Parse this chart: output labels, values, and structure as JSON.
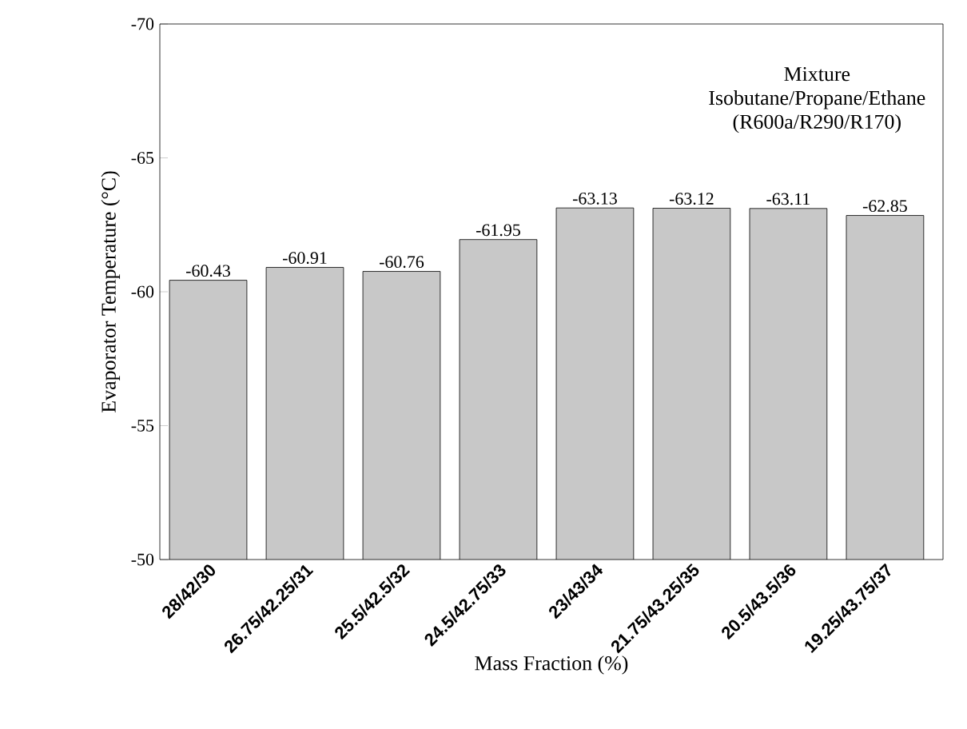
{
  "chart_data": {
    "type": "bar",
    "xlabel": "Mass Fraction (%)",
    "ylabel": "Evaporator Temperature (°C)",
    "categories": [
      "28/42/30",
      "26.75/42.25/31",
      "25.5/42.5/32",
      "24.5/42.75/33",
      "23/43/34",
      "21.75/43.25/35",
      "20.5/43.5/36",
      "19.25/43.75/37"
    ],
    "values": [
      -60.43,
      -60.91,
      -60.76,
      -61.95,
      -63.13,
      -63.12,
      -63.11,
      -62.85
    ],
    "color": "#c8c8c8",
    "ylim": [
      -50,
      -70
    ],
    "yticks": [
      -50,
      -55,
      -60,
      -65,
      -70
    ],
    "data_labels": true,
    "annotations": [
      "Mixture",
      "Isobutane/Propane/Ethane",
      "(R600a/R290/R170)"
    ]
  }
}
